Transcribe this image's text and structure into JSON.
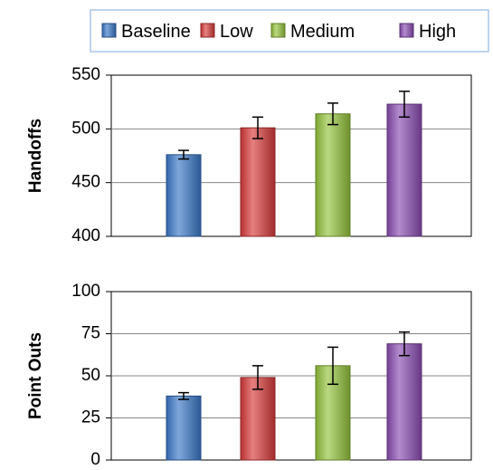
{
  "legend": {
    "items": [
      {
        "label": "Baseline",
        "color": "#3a78c8"
      },
      {
        "label": "Low",
        "color": "#d83a3a"
      },
      {
        "label": "Medium",
        "color": "#93c33c"
      },
      {
        "label": "High",
        "color": "#8a4cb2"
      }
    ],
    "placement": "top-right"
  },
  "chart_data": [
    {
      "type": "bar",
      "ylabel": "Handoffs",
      "categories": [
        "Baseline",
        "Low",
        "Medium",
        "High"
      ],
      "values": [
        476,
        501,
        514,
        523
      ],
      "error": [
        4,
        10,
        10,
        12
      ],
      "ylim": [
        400,
        550
      ],
      "yticks": [
        400,
        450,
        500,
        550
      ],
      "grid": true
    },
    {
      "type": "bar",
      "ylabel": "Point Outs",
      "categories": [
        "Baseline",
        "Low",
        "Medium",
        "High"
      ],
      "values": [
        38,
        49,
        56,
        69
      ],
      "error": [
        2,
        7,
        11,
        7
      ],
      "ylim": [
        0,
        100
      ],
      "yticks": [
        0,
        25,
        50,
        75,
        100
      ],
      "grid": true
    }
  ]
}
